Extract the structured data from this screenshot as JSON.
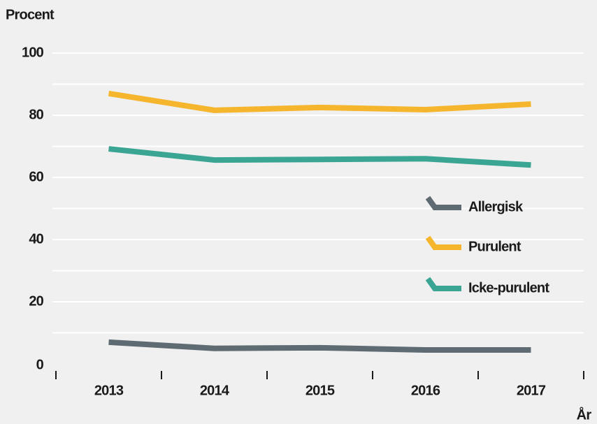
{
  "chart_data": {
    "type": "line",
    "y_label": "Procent",
    "x_label": "År",
    "categories": [
      "2013",
      "2014",
      "2015",
      "2016",
      "2017"
    ],
    "series": [
      {
        "name": "Allergisk",
        "color": "#5f6b73",
        "values": [
          7,
          5,
          5.2,
          4.5,
          4.5
        ]
      },
      {
        "name": "Purulent",
        "color": "#f5b62e",
        "values": [
          87,
          81.6,
          82.5,
          81.8,
          83.6
        ]
      },
      {
        "name": "Icke-purulent",
        "color": "#3aa593",
        "values": [
          69.2,
          65.6,
          65.8,
          66,
          64
        ]
      }
    ],
    "ylim": [
      0,
      100
    ],
    "yticks": [
      0,
      20,
      40,
      60,
      80,
      100
    ],
    "minor_yticks": [
      10,
      30,
      50,
      70,
      90
    ],
    "grid": true,
    "legend": "right"
  }
}
